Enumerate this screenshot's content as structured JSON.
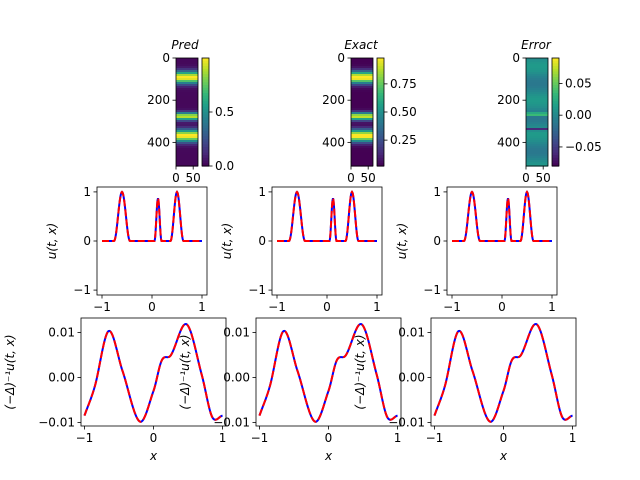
{
  "chart_data": {
    "type": "figure-grid",
    "images": [
      {
        "title": "Pred",
        "cmap": "viridis",
        "vmin": 0.0,
        "vmax": 1.0,
        "yticks": [
          "0",
          "200",
          "400"
        ],
        "xticks": [
          "0",
          "50"
        ],
        "cbar_ticks": [
          {
            "v": 0.0,
            "label": "0.0"
          },
          {
            "v": 0.5,
            "label": "0.5"
          }
        ],
        "bands": [
          {
            "center": 0.18,
            "width": 0.055,
            "peak": 1.0
          },
          {
            "center": 0.54,
            "width": 0.035,
            "peak": 0.9
          },
          {
            "center": 0.72,
            "width": 0.055,
            "peak": 1.0
          }
        ]
      },
      {
        "title": "Exact",
        "cmap": "viridis",
        "vmin": 0.02,
        "vmax": 0.98,
        "yticks": [
          "0",
          "200",
          "400"
        ],
        "xticks": [
          "0",
          "50"
        ],
        "cbar_ticks": [
          {
            "v": 0.25,
            "label": "0.25"
          },
          {
            "v": 0.5,
            "label": "0.50"
          },
          {
            "v": 0.75,
            "label": "0.75"
          }
        ],
        "bands": [
          {
            "center": 0.18,
            "width": 0.055,
            "peak": 1.0
          },
          {
            "center": 0.54,
            "width": 0.035,
            "peak": 0.9
          },
          {
            "center": 0.72,
            "width": 0.055,
            "peak": 1.0
          }
        ]
      },
      {
        "title": "Error",
        "cmap": "viridis",
        "vmin": -0.08,
        "vmax": 0.09,
        "yticks": [
          "0",
          "200",
          "400"
        ],
        "xticks": [
          "0",
          "50"
        ],
        "cbar_ticks": [
          {
            "v": -0.05,
            "label": "−0.05"
          },
          {
            "v": 0.0,
            "label": "0.00"
          },
          {
            "v": 0.05,
            "label": "0.05"
          }
        ],
        "bands": [
          {
            "center": 0.52,
            "width": 0.012,
            "peak": 0.07
          },
          {
            "center": 0.66,
            "width": 0.01,
            "peak": -0.07
          }
        ]
      }
    ],
    "u_plots": {
      "xlim": [
        -1.1,
        1.1
      ],
      "ylim": [
        -1.1,
        1.1
      ],
      "xticks": [
        "−1",
        "0",
        "1"
      ],
      "yticks": [
        "−1",
        "0",
        "1"
      ],
      "ylabel": "u(t, x)",
      "bumps": [
        {
          "center": -0.6,
          "half_width": 0.16,
          "height": 1.0
        },
        {
          "center": 0.12,
          "half_width": 0.07,
          "height": 0.87
        },
        {
          "center": 0.5,
          "half_width": 0.13,
          "height": 1.0
        }
      ],
      "series": [
        {
          "name": "exact",
          "color": "#0000ff",
          "style": "solid"
        },
        {
          "name": "pred",
          "color": "#ff0000",
          "style": "dashed"
        }
      ]
    },
    "inv_plots": {
      "xlim": [
        -1.05,
        1.05
      ],
      "ylim": [
        -0.0108,
        0.0132
      ],
      "xticks": [
        "−1",
        "0",
        "1"
      ],
      "yticks": [
        "−0.01",
        "0.00",
        "0.01"
      ],
      "ylabel": "(−Δ)⁻¹u(t, x)",
      "xlabel": "x",
      "points": [
        [
          -1.0,
          -0.0085
        ],
        [
          -0.85,
          -0.002
        ],
        [
          -0.65,
          0.0103
        ],
        [
          -0.45,
          0.0015
        ],
        [
          -0.2,
          -0.0098
        ],
        [
          0.0,
          -0.003
        ],
        [
          0.12,
          0.0038
        ],
        [
          0.25,
          0.0049
        ],
        [
          0.48,
          0.0118
        ],
        [
          0.7,
          0.0005
        ],
        [
          0.85,
          -0.0088
        ],
        [
          1.0,
          -0.0085
        ]
      ],
      "series": [
        {
          "name": "exact",
          "color": "#0000ff",
          "style": "solid"
        },
        {
          "name": "pred",
          "color": "#ff0000",
          "style": "dashed"
        }
      ]
    }
  }
}
